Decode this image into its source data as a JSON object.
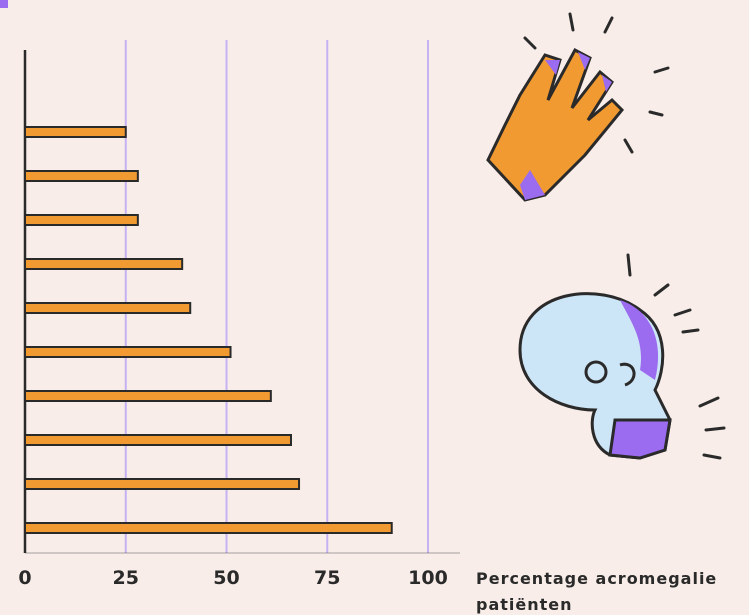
{
  "chart_data": {
    "type": "bar",
    "orientation": "horizontal",
    "categories": [
      null,
      null,
      null,
      null,
      null,
      null,
      null,
      null,
      null,
      null
    ],
    "values": [
      25,
      28,
      28,
      39,
      41,
      51,
      61,
      66,
      68,
      91
    ],
    "color": "#f19a32",
    "xlim": [
      0,
      100
    ],
    "xticks": [
      0,
      25,
      50,
      75,
      100
    ],
    "grid": true,
    "grid_color": "#c4b2f2",
    "x_label": "Percentage acromegalie patiënten"
  }
}
